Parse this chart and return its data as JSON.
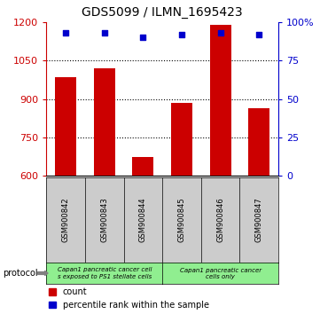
{
  "title": "GDS5099 / ILMN_1695423",
  "samples": [
    "GSM900842",
    "GSM900843",
    "GSM900844",
    "GSM900845",
    "GSM900846",
    "GSM900847"
  ],
  "counts": [
    985,
    1020,
    672,
    885,
    1190,
    865
  ],
  "percentile_ranks": [
    93,
    93,
    90,
    92,
    93,
    92
  ],
  "ylim_left": [
    600,
    1200
  ],
  "ylim_right": [
    0,
    100
  ],
  "yticks_left": [
    600,
    750,
    900,
    1050,
    1200
  ],
  "yticks_right": [
    0,
    25,
    50,
    75,
    100
  ],
  "ytick_labels_right": [
    "0",
    "25",
    "50",
    "75",
    "100%"
  ],
  "bar_color": "#cc0000",
  "dot_color": "#0000cc",
  "protocol_group1_label": "Capan1 pancreatic cancer cell\ns exposed to PS1 stellate cells",
  "protocol_group2_label": "Capan1 pancreatic cancer\ncells only",
  "protocol_group_color": "#90ee90",
  "sample_box_color": "#cccccc",
  "legend_count_label": "count",
  "legend_percentile_label": "percentile rank within the sample",
  "protocol_label": "protocol",
  "bar_width": 0.55,
  "left_axis_color": "#cc0000",
  "right_axis_color": "#0000cc",
  "grid_yticks": [
    750,
    900,
    1050
  ]
}
